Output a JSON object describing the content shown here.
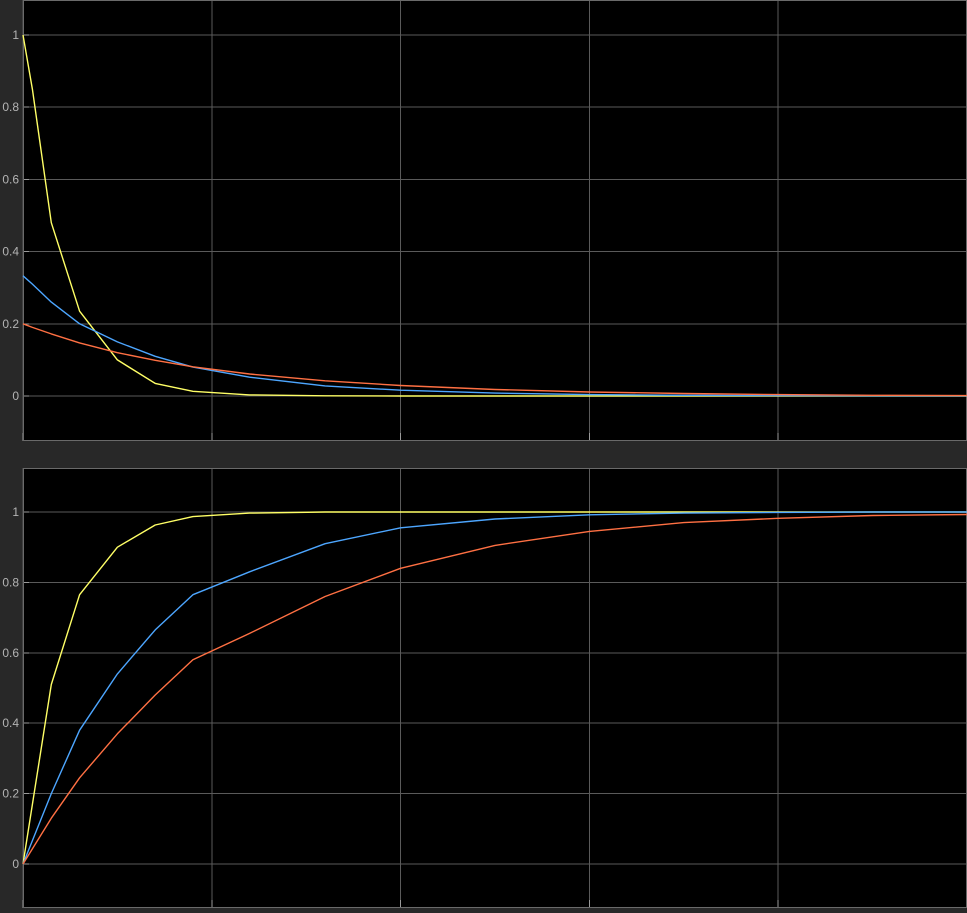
{
  "chart_data": [
    {
      "type": "line",
      "title": "",
      "xlabel": "",
      "ylabel": "",
      "xlim": [
        0,
        5
      ],
      "ylim": [
        -0.12,
        1.1
      ],
      "x_ticks": [
        0,
        1,
        2,
        3,
        4,
        5
      ],
      "y_ticks": [
        0,
        0.2,
        0.4,
        0.6,
        0.8,
        1
      ],
      "y_tick_labels": [
        "0",
        "0.2",
        "0.4",
        "0.6",
        "0.8",
        "1"
      ],
      "grid": true,
      "x": [
        0,
        0.05,
        0.15,
        0.3,
        0.5,
        0.7,
        0.9,
        1.2,
        1.6,
        2.0,
        2.5,
        3.0,
        3.5,
        4.0,
        4.5,
        5.0
      ],
      "series": [
        {
          "color": "#ffff66",
          "values": [
            1.0,
            0.85,
            0.48,
            0.235,
            0.1,
            0.035,
            0.013,
            0.003,
            0.0005,
            0.0,
            0.0,
            0.0,
            0.0,
            0.0,
            0.0,
            0.0
          ]
        },
        {
          "color": "#4da6ff",
          "values": [
            0.333,
            0.31,
            0.26,
            0.2,
            0.15,
            0.11,
            0.08,
            0.052,
            0.028,
            0.016,
            0.008,
            0.004,
            0.002,
            0.001,
            0.0005,
            0.0003
          ]
        },
        {
          "color": "#ff7043",
          "values": [
            0.2,
            0.19,
            0.172,
            0.147,
            0.12,
            0.099,
            0.081,
            0.061,
            0.042,
            0.029,
            0.018,
            0.011,
            0.007,
            0.004,
            0.002,
            0.001
          ]
        }
      ]
    },
    {
      "type": "line",
      "title": "",
      "xlabel": "",
      "ylabel": "",
      "xlim": [
        0,
        5
      ],
      "ylim": [
        -0.12,
        1.1
      ],
      "x_ticks": [
        0,
        1,
        2,
        3,
        4,
        5
      ],
      "y_ticks": [
        0,
        0.2,
        0.4,
        0.6,
        0.8,
        1
      ],
      "y_tick_labels": [
        "0",
        "0.2",
        "0.4",
        "0.6",
        "0.8",
        "1"
      ],
      "grid": true,
      "x": [
        0,
        0.15,
        0.3,
        0.5,
        0.7,
        0.9,
        1.2,
        1.6,
        2.0,
        2.5,
        3.0,
        3.5,
        4.0,
        4.5,
        5.0
      ],
      "series": [
        {
          "color": "#ffff66",
          "values": [
            0.0,
            0.51,
            0.765,
            0.9,
            0.963,
            0.987,
            0.997,
            1.0,
            1.0,
            1.0,
            1.0,
            1.0,
            1.0,
            1.0,
            1.0
          ]
        },
        {
          "color": "#4da6ff",
          "values": [
            0.0,
            0.2,
            0.38,
            0.54,
            0.665,
            0.765,
            0.83,
            0.91,
            0.955,
            0.98,
            0.992,
            0.997,
            0.999,
            1.0,
            1.0
          ]
        },
        {
          "color": "#ff7043",
          "values": [
            0.0,
            0.13,
            0.245,
            0.37,
            0.48,
            0.58,
            0.655,
            0.76,
            0.84,
            0.905,
            0.945,
            0.97,
            0.982,
            0.99,
            0.993
          ]
        }
      ]
    }
  ],
  "colors": {
    "frame": "#282828",
    "plot_background": "#000000",
    "grid": "#5a5a5a",
    "tick_label": "#b4b4b4"
  }
}
